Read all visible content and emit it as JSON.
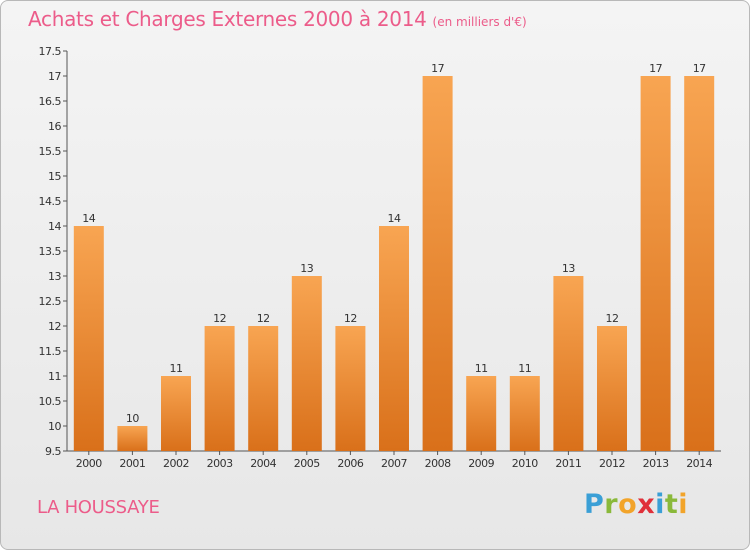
{
  "chart_data": {
    "type": "bar",
    "title": "Achats et Charges Externes 2000 à 2014",
    "subtitle": "(en milliers d'€)",
    "categories": [
      "2000",
      "2001",
      "2002",
      "2003",
      "2004",
      "2005",
      "2006",
      "2007",
      "2008",
      "2009",
      "2010",
      "2011",
      "2012",
      "2013",
      "2014"
    ],
    "values": [
      14,
      10,
      11,
      12,
      12,
      13,
      12,
      14,
      17,
      11,
      11,
      13,
      12,
      17,
      17
    ],
    "ylim": [
      9.5,
      17.5
    ],
    "yticks": [
      "9.5",
      "10",
      "10.5",
      "11",
      "11.5",
      "12",
      "12.5",
      "13",
      "13.5",
      "14",
      "14.5",
      "15",
      "15.5",
      "16",
      "16.5",
      "17",
      "17.5"
    ],
    "xlabel": "",
    "ylabel": "",
    "grid": false,
    "bar_color": "#f08c2c"
  },
  "footer": {
    "location": "LA HOUSSAYE",
    "logo_letters": [
      {
        "ch": "P",
        "color": "#3a9fd6"
      },
      {
        "ch": "r",
        "color": "#8ab93a"
      },
      {
        "ch": "o",
        "color": "#f2a42a"
      },
      {
        "ch": "x",
        "color": "#e0303a"
      },
      {
        "ch": "i",
        "color": "#3a9fd6"
      },
      {
        "ch": "t",
        "color": "#8ab93a"
      },
      {
        "ch": "i",
        "color": "#f2a42a"
      }
    ]
  }
}
